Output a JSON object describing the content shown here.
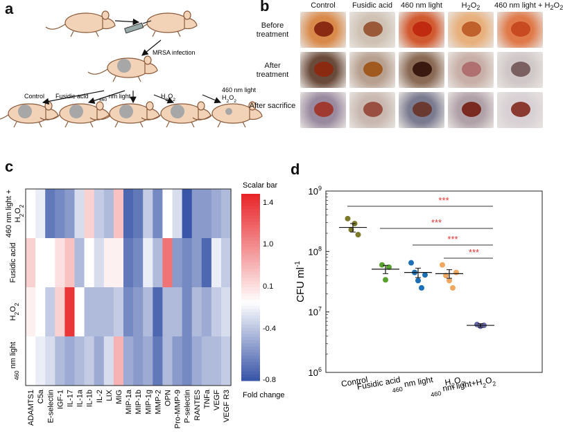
{
  "panel_letters": {
    "a": "a",
    "b": "b",
    "c": "c",
    "d": "d"
  },
  "panel_a": {
    "mrsa_label": "MRSA infection",
    "groups": [
      "Control",
      "Fusidic acid",
      "460 nm light",
      "H2O2",
      "460 nm light H2O2"
    ],
    "colors": {
      "mouse_fill": "#f3d3b8",
      "mouse_stroke": "#8a5a3a",
      "wound": "#a7a7a7"
    }
  },
  "panel_b": {
    "columns": [
      "Control",
      "Fusidic acid",
      "460 nm light",
      "H2O2",
      "460 nm light + H2O2"
    ],
    "rows": [
      {
        "label": "Before treatment",
        "tones": [
          "#d98a4a",
          "#cfc2b4",
          "#d25a30",
          "#e8b07c",
          "#e07a4a"
        ],
        "wound": [
          "#8a2a12",
          "#9a5a3a",
          "#c02a10",
          "#c0602a",
          "#c84a20"
        ]
      },
      {
        "label": "After treatment",
        "tones": [
          "#6a4a3a",
          "#b8a090",
          "#8a6a55",
          "#c8b0a8",
          "#d0c8c8"
        ],
        "wound": [
          "#8a2a10",
          "#a05a20",
          "#3a1a10",
          "#b07070",
          "#7a6060"
        ]
      },
      {
        "label": "After sacrifice",
        "tones": [
          "#9a8aa0",
          "#c8b8b0",
          "#7a7a90",
          "#b0a0a8",
          "#d8d0d4"
        ],
        "wound": [
          "#a03a30",
          "#9a5040",
          "#6a3a30",
          "#7a2a20",
          "#8a3a30"
        ]
      }
    ]
  },
  "chart_data": [
    {
      "type": "heatmap",
      "rows": [
        "460 nm light + H2O2",
        "Fusidic acid",
        "H2O2",
        "460 nm light"
      ],
      "columns": [
        "ADAMTS1",
        "C5a",
        "E-selectin",
        "IGF-1",
        "IL-17",
        "IL-1a",
        "IL-1b",
        "IL-2",
        "LIX",
        "MIG",
        "MIP-1a",
        "MIP-1b",
        "MIP-1g",
        "MMP-2",
        "OPN",
        "Pro-MMP-9",
        "P-selectin",
        "RANTES",
        "TNFa",
        "VEGF",
        "VEGF R3"
      ],
      "values": [
        [
          0.1,
          0.0,
          -0.7,
          -0.6,
          -0.5,
          -0.1,
          0.4,
          -0.2,
          -0.3,
          0.5,
          -0.8,
          -0.7,
          -0.2,
          -0.6,
          0.1,
          -0.1,
          -0.9,
          -0.5,
          -0.5,
          -0.4,
          -0.3
        ],
        [
          0.4,
          0.1,
          0.1,
          0.3,
          0.5,
          -0.3,
          0.1,
          -0.1,
          0.2,
          0.2,
          -0.7,
          -0.6,
          0.0,
          -0.3,
          1.0,
          -0.5,
          -0.6,
          -0.5,
          -0.8,
          0.0,
          -0.2
        ],
        [
          0.2,
          0.1,
          -0.2,
          0.4,
          1.4,
          0.1,
          -0.3,
          -0.3,
          -0.3,
          -0.2,
          -0.6,
          -0.5,
          -0.3,
          -0.8,
          -0.3,
          -0.3,
          -0.6,
          -0.3,
          -0.4,
          -0.2,
          -0.1
        ],
        [
          0.1,
          0.0,
          -0.1,
          -0.3,
          -0.4,
          -0.3,
          -0.2,
          -0.4,
          -0.1,
          0.6,
          -0.4,
          -0.5,
          -0.4,
          -0.7,
          -0.3,
          -0.5,
          -0.6,
          -0.4,
          -0.3,
          -0.3,
          -0.2
        ]
      ],
      "colorbar": {
        "title": "Scalar bar",
        "label": "Fold change",
        "ticks": [
          1.4,
          1.0,
          0.1,
          -0.4,
          -0.8
        ],
        "range": [
          -0.9,
          1.5
        ]
      },
      "colors": {
        "high": "#e8262a",
        "mid": "#ffffff",
        "low": "#3a56a8"
      }
    },
    {
      "type": "scatter",
      "categories": [
        "Control",
        "Fusidic acid",
        "460 nm light",
        "H2O2",
        "460 nm light+H2O2"
      ],
      "ylabel": "CFU ml-1",
      "yscale": "log",
      "ylim": [
        1000000,
        1000000000
      ],
      "yticks": [
        "10^6",
        "10^7",
        "10^8",
        "10^9"
      ],
      "points": [
        [
          350000000,
          230000000,
          290000000,
          190000000
        ],
        [
          60000000,
          34000000,
          55000000
        ],
        [
          65000000,
          45000000,
          33000000,
          25000000,
          41000000
        ],
        [
          60000000,
          40000000,
          33000000,
          25000000,
          45000000
        ],
        [
          6200000,
          5800000,
          6000000
        ]
      ],
      "means": [
        250000000,
        51000000,
        45000000,
        43000000,
        6000000
      ],
      "errors": [
        40000000,
        8000000,
        8000000,
        7000000,
        400000
      ],
      "colors": [
        "#7d7a2a",
        "#5aa02e",
        "#1a6fb6",
        "#f0a860",
        "#6a6aa8"
      ],
      "significance": {
        "label": "***",
        "color": "#e03030",
        "comparisons": [
          [
            0,
            4
          ],
          [
            1,
            4
          ],
          [
            2,
            4
          ],
          [
            3,
            4
          ]
        ]
      }
    }
  ]
}
